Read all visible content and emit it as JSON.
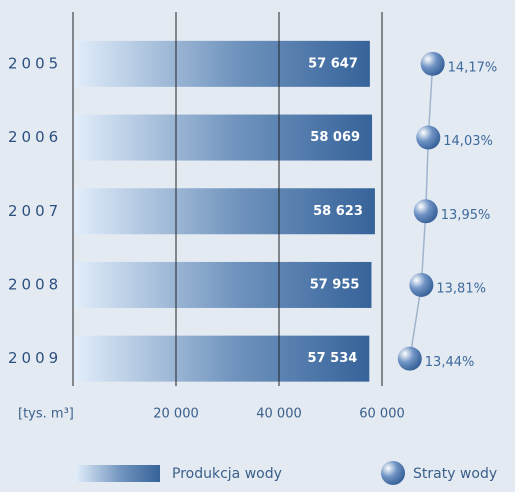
{
  "chart_data": {
    "type": "bar",
    "orientation": "horizontal",
    "categories": [
      "2005",
      "2006",
      "2007",
      "2008",
      "2009"
    ],
    "x_axis_label": "[tys. m³]",
    "xlim": [
      0,
      60000
    ],
    "xticks": [
      {
        "value": 20000,
        "label": "20 000"
      },
      {
        "value": 40000,
        "label": "40 000"
      },
      {
        "value": 60000,
        "label": "60 000"
      }
    ],
    "x2lim": [
      13.0,
      14.5
    ],
    "grid": true,
    "legend": "bottom",
    "series": [
      {
        "name": "Produkcja wody",
        "color": "#3d6a9c",
        "values": [
          57647,
          58069,
          58623,
          57955,
          57534
        ],
        "value_labels": [
          "57 647",
          "58 069",
          "58 623",
          "57 955",
          "57 534"
        ]
      },
      {
        "name": "Straty wody",
        "color": "#3d6a9c",
        "axis": "x2",
        "values": [
          14.17,
          14.03,
          13.95,
          13.81,
          13.44
        ],
        "value_labels": [
          "14,17%",
          "14,03%",
          "13,95%",
          "13,81%",
          "13,44%"
        ]
      }
    ]
  }
}
